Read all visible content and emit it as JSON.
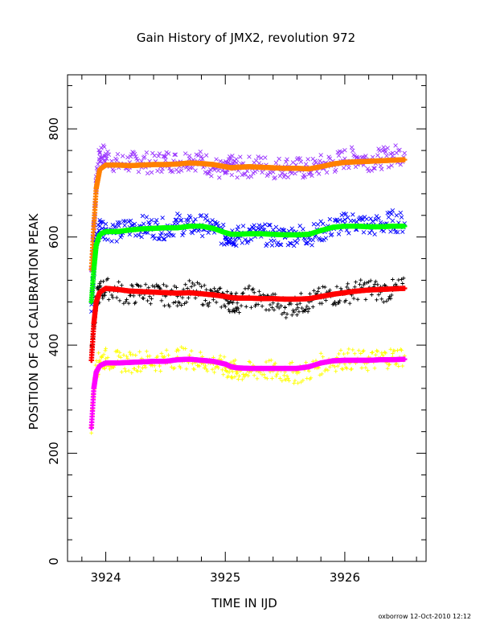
{
  "chart_data": {
    "type": "scatter",
    "title": "Gain History of JMX2, revolution 972",
    "xlabel": "TIME IN IJD",
    "ylabel": "POSITION OF Cd CALIBRATION PEAK",
    "xlim": [
      3923.68,
      3926.68
    ],
    "ylim": [
      0,
      900
    ],
    "xticks": [
      "3924",
      "3925",
      "3926"
    ],
    "xtick_values": [
      3924,
      3925,
      3926
    ],
    "yticks": [
      "0",
      "200",
      "400",
      "600",
      "800"
    ],
    "ytick_values": [
      0,
      200,
      400,
      600,
      800
    ],
    "grid": false,
    "footer": "oxborrow 12-Oct-2010 12:12",
    "series": [
      {
        "kind": "measured",
        "marker": "x",
        "color": "#9933ff",
        "x": [
          3923.88,
          3923.9,
          3923.92,
          3923.95,
          3924.0,
          3924.1,
          3924.2,
          3924.3,
          3924.4,
          3924.5,
          3924.6,
          3924.7,
          3924.8,
          3924.9,
          3925.0,
          3925.05,
          3925.1,
          3925.2,
          3925.3,
          3925.4,
          3925.5,
          3925.6,
          3925.7,
          3925.8,
          3925.9,
          3926.0,
          3926.1,
          3926.2,
          3926.3,
          3926.4,
          3926.5
        ],
        "y": [
          540,
          620,
          700,
          755,
          750,
          735,
          738,
          740,
          735,
          742,
          738,
          745,
          740,
          730,
          720,
          732,
          728,
          730,
          733,
          727,
          730,
          728,
          725,
          733,
          736,
          745,
          748,
          742,
          745,
          750,
          755
        ]
      },
      {
        "kind": "fit",
        "marker": "+",
        "color": "#ff8000",
        "x": [
          3923.88,
          3923.9,
          3923.92,
          3923.95,
          3924.0,
          3924.1,
          3924.2,
          3924.3,
          3924.4,
          3924.5,
          3924.6,
          3924.7,
          3924.8,
          3924.9,
          3925.0,
          3925.05,
          3925.1,
          3925.2,
          3925.3,
          3925.4,
          3925.5,
          3925.6,
          3925.7,
          3925.8,
          3925.9,
          3926.0,
          3926.1,
          3926.2,
          3926.3,
          3926.4,
          3926.5
        ],
        "y": [
          540,
          620,
          690,
          725,
          733,
          733,
          732,
          733,
          734,
          734,
          735,
          737,
          736,
          734,
          730,
          728,
          729,
          730,
          729,
          728,
          727,
          727,
          726,
          730,
          735,
          738,
          739,
          740,
          741,
          742,
          743
        ]
      },
      {
        "kind": "measured",
        "marker": "x",
        "color": "#0000ff",
        "x": [
          3923.88,
          3923.9,
          3923.92,
          3923.95,
          3924.0,
          3924.1,
          3924.2,
          3924.3,
          3924.4,
          3924.5,
          3924.6,
          3924.7,
          3924.8,
          3924.9,
          3925.0,
          3925.05,
          3925.1,
          3925.2,
          3925.3,
          3925.4,
          3925.5,
          3925.6,
          3925.7,
          3925.8,
          3925.9,
          3926.0,
          3926.1,
          3926.2,
          3926.3,
          3926.4,
          3926.5
        ],
        "y": [
          480,
          540,
          590,
          620,
          615,
          608,
          618,
          620,
          617,
          615,
          625,
          620,
          622,
          618,
          600,
          605,
          600,
          608,
          605,
          602,
          600,
          605,
          603,
          610,
          618,
          625,
          628,
          620,
          622,
          630,
          625
        ]
      },
      {
        "kind": "fit",
        "marker": "+",
        "color": "#00ff00",
        "x": [
          3923.88,
          3923.9,
          3923.92,
          3923.95,
          3924.0,
          3924.1,
          3924.2,
          3924.3,
          3924.4,
          3924.5,
          3924.6,
          3924.7,
          3924.8,
          3924.9,
          3925.0,
          3925.05,
          3925.1,
          3925.2,
          3925.3,
          3925.4,
          3925.5,
          3925.6,
          3925.7,
          3925.8,
          3925.9,
          3926.0,
          3926.1,
          3926.2,
          3926.3,
          3926.4,
          3926.5
        ],
        "y": [
          480,
          540,
          585,
          605,
          610,
          610,
          613,
          615,
          616,
          617,
          617,
          620,
          620,
          616,
          608,
          605,
          605,
          606,
          606,
          605,
          604,
          604,
          605,
          612,
          618,
          620,
          620,
          619,
          619,
          620,
          620
        ]
      },
      {
        "kind": "measured",
        "marker": "+",
        "color": "#000000",
        "x": [
          3923.88,
          3923.9,
          3923.92,
          3923.95,
          3924.0,
          3924.1,
          3924.2,
          3924.3,
          3924.4,
          3924.5,
          3924.6,
          3924.7,
          3924.8,
          3924.9,
          3925.0,
          3925.05,
          3925.1,
          3925.2,
          3925.3,
          3925.4,
          3925.5,
          3925.6,
          3925.7,
          3925.8,
          3925.9,
          3926.0,
          3926.1,
          3926.2,
          3926.3,
          3926.4,
          3926.5
        ],
        "y": [
          390,
          440,
          480,
          500,
          505,
          500,
          492,
          498,
          495,
          492,
          490,
          500,
          494,
          490,
          485,
          480,
          478,
          490,
          483,
          478,
          470,
          475,
          480,
          488,
          492,
          495,
          500,
          505,
          498,
          502,
          505
        ]
      },
      {
        "kind": "fit",
        "marker": "+",
        "color": "#ff0000",
        "x": [
          3923.88,
          3923.9,
          3923.92,
          3923.95,
          3924.0,
          3924.1,
          3924.2,
          3924.3,
          3924.4,
          3924.5,
          3924.6,
          3924.7,
          3924.8,
          3924.9,
          3925.0,
          3925.05,
          3925.1,
          3925.2,
          3925.3,
          3925.4,
          3925.5,
          3925.6,
          3925.7,
          3925.8,
          3925.9,
          3926.0,
          3926.1,
          3926.2,
          3926.3,
          3926.4,
          3926.5
        ],
        "y": [
          372,
          440,
          480,
          498,
          505,
          503,
          500,
          499,
          498,
          497,
          496,
          497,
          495,
          493,
          490,
          488,
          487,
          487,
          486,
          486,
          485,
          485,
          486,
          490,
          494,
          497,
          500,
          502,
          503,
          504,
          505
        ]
      },
      {
        "kind": "measured",
        "marker": "+",
        "color": "#ffff00",
        "x": [
          3923.88,
          3923.9,
          3923.92,
          3923.95,
          3924.0,
          3924.1,
          3924.2,
          3924.3,
          3924.4,
          3924.5,
          3924.6,
          3924.7,
          3924.8,
          3924.9,
          3925.0,
          3925.05,
          3925.1,
          3925.2,
          3925.3,
          3925.4,
          3925.5,
          3925.6,
          3925.7,
          3925.8,
          3925.9,
          3926.0,
          3926.1,
          3926.2,
          3926.3,
          3926.4,
          3926.5
        ],
        "y": [
          250,
          320,
          355,
          372,
          375,
          370,
          368,
          372,
          370,
          372,
          378,
          375,
          370,
          365,
          358,
          355,
          352,
          350,
          355,
          352,
          350,
          348,
          352,
          365,
          370,
          375,
          372,
          370,
          375,
          378,
          380
        ]
      },
      {
        "kind": "fit",
        "marker": "+",
        "color": "#ff00ff",
        "x": [
          3923.88,
          3923.9,
          3923.92,
          3923.95,
          3924.0,
          3924.1,
          3924.2,
          3924.3,
          3924.4,
          3924.5,
          3924.6,
          3924.7,
          3924.8,
          3924.9,
          3925.0,
          3925.05,
          3925.1,
          3925.2,
          3925.3,
          3925.4,
          3925.5,
          3925.6,
          3925.7,
          3925.8,
          3925.9,
          3926.0,
          3926.1,
          3926.2,
          3926.3,
          3926.4,
          3926.5
        ],
        "y": [
          247,
          320,
          350,
          362,
          367,
          367,
          368,
          369,
          370,
          370,
          373,
          374,
          372,
          370,
          365,
          360,
          358,
          357,
          357,
          357,
          357,
          357,
          360,
          367,
          371,
          372,
          372,
          372,
          373,
          373,
          374
        ]
      }
    ]
  }
}
